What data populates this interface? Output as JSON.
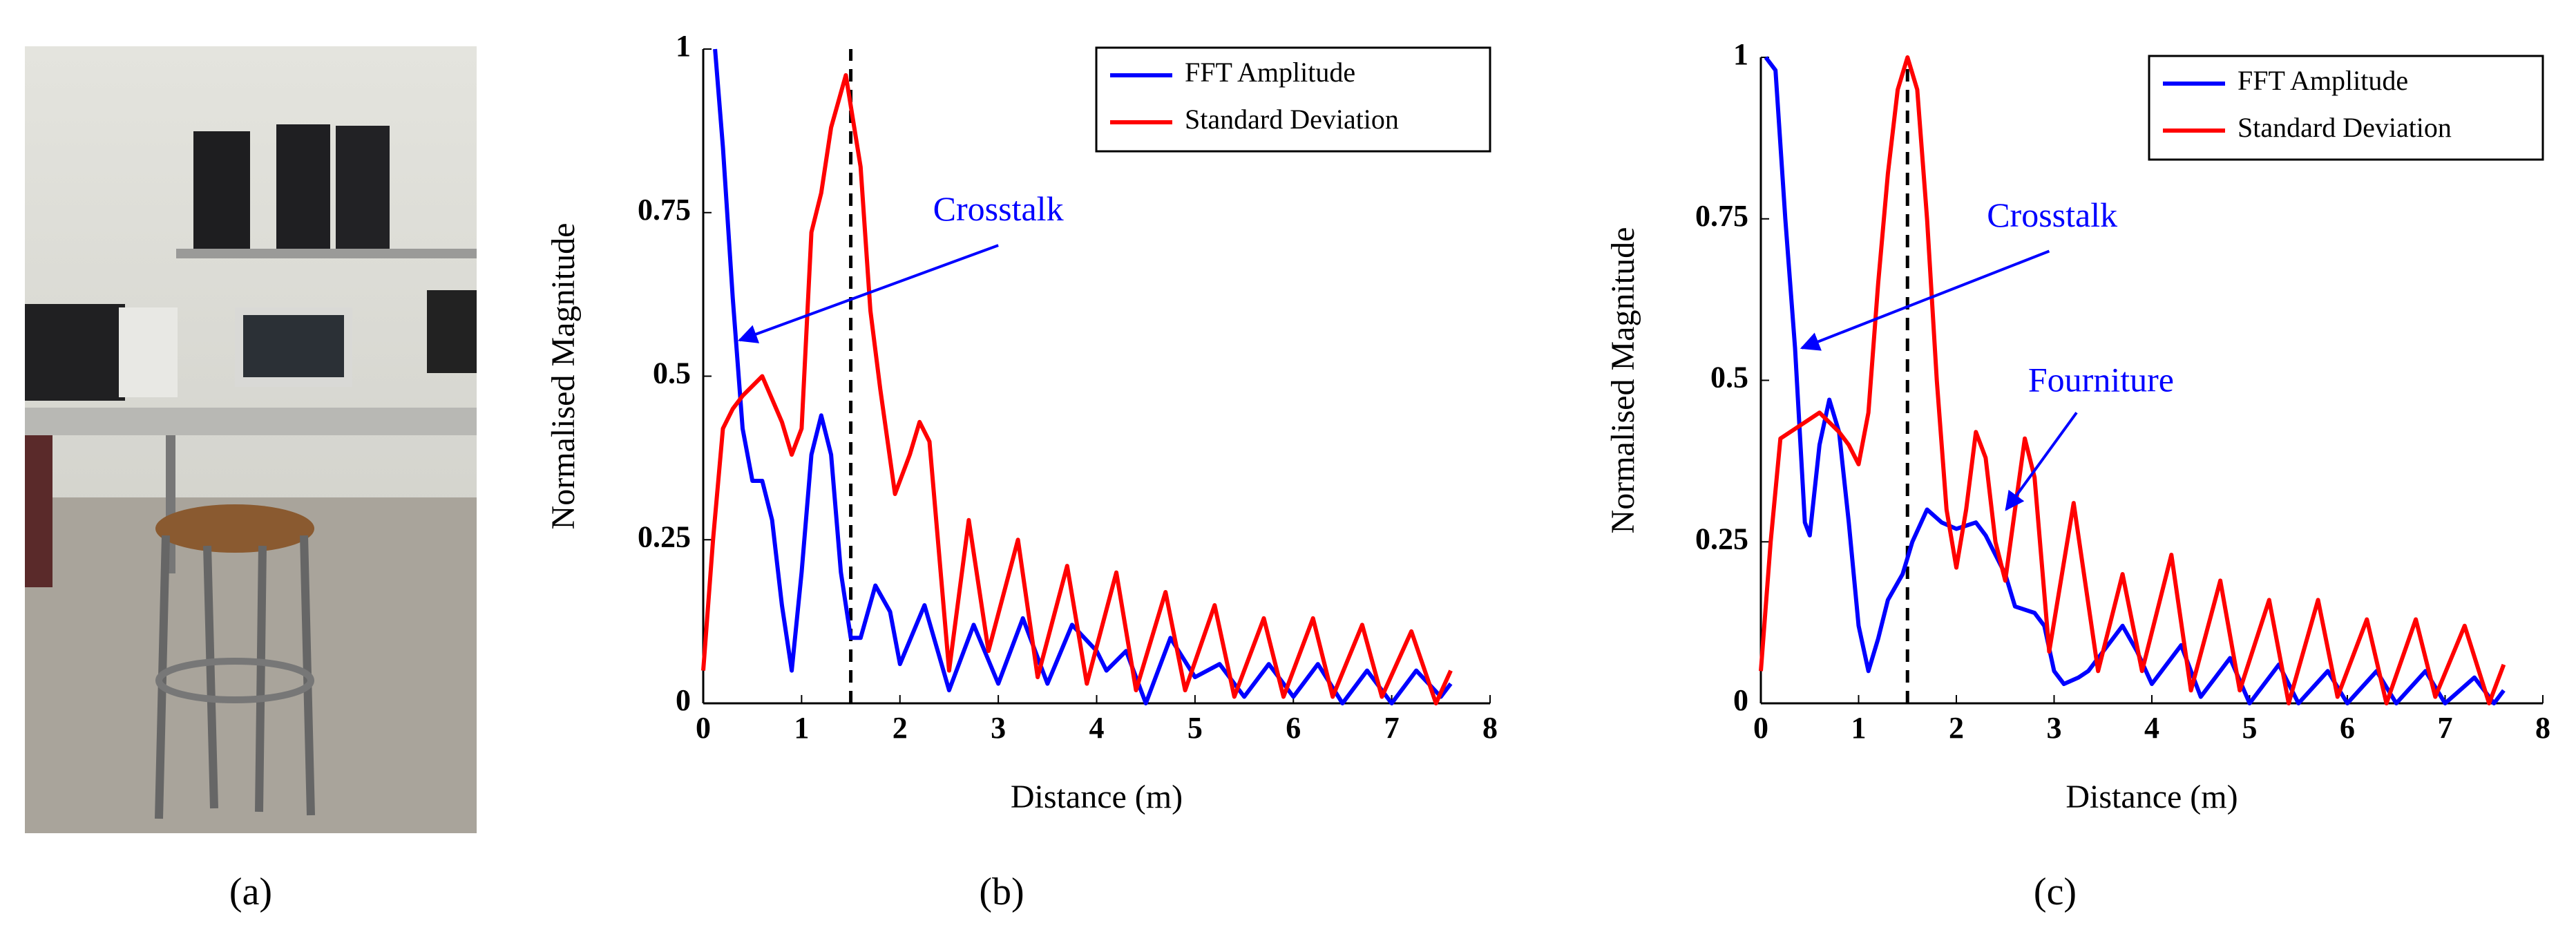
{
  "panels": [
    "(a)",
    "(b)",
    "(c)"
  ],
  "chart_data": [
    {
      "type": "line",
      "xlabel": "Distance (m)",
      "ylabel": "Normalised Magnitude",
      "xlim": [
        0,
        8
      ],
      "ylim": [
        0,
        1
      ],
      "xticks": [
        0,
        1,
        2,
        3,
        4,
        5,
        6,
        7,
        8
      ],
      "yticks": [
        0,
        0.25,
        0.5,
        0.75,
        1
      ],
      "vline": 1.5,
      "legend": "upper right",
      "annotations": [
        {
          "text": "Crosstalk",
          "color": "#0000ff"
        }
      ],
      "series": [
        {
          "name": "FFT Amplitude",
          "color": "#0000ff",
          "x": [
            0.12,
            0.2,
            0.3,
            0.4,
            0.5,
            0.6,
            0.7,
            0.8,
            0.9,
            1.0,
            1.1,
            1.2,
            1.3,
            1.4,
            1.5,
            1.6,
            1.75,
            1.9,
            2.0,
            2.25,
            2.5,
            2.75,
            3.0,
            3.25,
            3.5,
            3.75,
            4.0,
            4.1,
            4.3,
            4.5,
            4.75,
            5.0,
            5.25,
            5.5,
            5.75,
            6.0,
            6.25,
            6.5,
            6.75,
            7.0,
            7.25,
            7.5,
            7.6
          ],
          "values": [
            1,
            0.85,
            0.62,
            0.42,
            0.34,
            0.34,
            0.28,
            0.15,
            0.05,
            0.2,
            0.38,
            0.44,
            0.38,
            0.2,
            0.1,
            0.1,
            0.18,
            0.14,
            0.06,
            0.15,
            0.02,
            0.12,
            0.03,
            0.13,
            0.03,
            0.12,
            0.08,
            0.05,
            0.08,
            0,
            0.1,
            0.04,
            0.06,
            0.01,
            0.06,
            0.01,
            0.06,
            0,
            0.05,
            0,
            0.05,
            0.01,
            0.03
          ]
        },
        {
          "name": "Standard Deviation",
          "color": "#ff0000",
          "x": [
            0,
            0.1,
            0.2,
            0.3,
            0.4,
            0.6,
            0.8,
            0.9,
            1.0,
            1.1,
            1.2,
            1.3,
            1.45,
            1.6,
            1.7,
            1.8,
            1.95,
            2.1,
            2.2,
            2.3,
            2.5,
            2.7,
            2.9,
            3.2,
            3.4,
            3.7,
            3.9,
            4.2,
            4.4,
            4.7,
            4.9,
            5.2,
            5.4,
            5.7,
            5.9,
            6.2,
            6.4,
            6.7,
            6.9,
            7.2,
            7.45,
            7.6
          ],
          "values": [
            0.05,
            0.25,
            0.42,
            0.45,
            0.47,
            0.5,
            0.43,
            0.38,
            0.42,
            0.72,
            0.78,
            0.88,
            0.96,
            0.82,
            0.6,
            0.48,
            0.32,
            0.38,
            0.43,
            0.4,
            0.05,
            0.28,
            0.08,
            0.25,
            0.04,
            0.21,
            0.03,
            0.2,
            0.02,
            0.17,
            0.02,
            0.15,
            0.01,
            0.13,
            0.01,
            0.13,
            0.01,
            0.12,
            0.01,
            0.11,
            0,
            0.05
          ]
        }
      ]
    },
    {
      "type": "line",
      "xlabel": "Distance (m)",
      "ylabel": "Normalised Magnitude",
      "xlim": [
        0,
        8
      ],
      "ylim": [
        0,
        1
      ],
      "xticks": [
        0,
        1,
        2,
        3,
        4,
        5,
        6,
        7,
        8
      ],
      "yticks": [
        0,
        0.25,
        0.5,
        0.75,
        1
      ],
      "vline": 1.5,
      "legend": "upper right",
      "annotations": [
        {
          "text": "Crosstalk",
          "color": "#0000ff"
        },
        {
          "text": "Fourniture",
          "color": "#0000ff"
        }
      ],
      "series": [
        {
          "name": "FFT Amplitude",
          "color": "#0000ff",
          "x": [
            0.05,
            0.15,
            0.25,
            0.35,
            0.45,
            0.5,
            0.6,
            0.7,
            0.8,
            0.9,
            1.0,
            1.1,
            1.2,
            1.3,
            1.45,
            1.55,
            1.7,
            1.85,
            2.0,
            2.2,
            2.3,
            2.5,
            2.6,
            2.8,
            2.9,
            3.0,
            3.1,
            3.25,
            3.35,
            3.5,
            3.7,
            3.85,
            4.0,
            4.3,
            4.5,
            4.8,
            5.0,
            5.3,
            5.5,
            5.8,
            6.0,
            6.3,
            6.5,
            6.8,
            7.0,
            7.3,
            7.5,
            7.6
          ],
          "values": [
            1,
            0.98,
            0.75,
            0.55,
            0.28,
            0.26,
            0.4,
            0.47,
            0.42,
            0.28,
            0.12,
            0.05,
            0.1,
            0.16,
            0.2,
            0.25,
            0.3,
            0.28,
            0.27,
            0.28,
            0.26,
            0.2,
            0.15,
            0.14,
            0.12,
            0.05,
            0.03,
            0.04,
            0.05,
            0.08,
            0.12,
            0.08,
            0.03,
            0.09,
            0.01,
            0.07,
            0,
            0.06,
            0,
            0.05,
            0,
            0.05,
            0,
            0.05,
            0,
            0.04,
            0,
            0.02
          ]
        },
        {
          "name": "Standard Deviation",
          "color": "#ff0000",
          "x": [
            0,
            0.1,
            0.2,
            0.4,
            0.6,
            0.8,
            0.9,
            1.0,
            1.1,
            1.2,
            1.3,
            1.4,
            1.5,
            1.6,
            1.7,
            1.8,
            1.9,
            2.0,
            2.1,
            2.2,
            2.3,
            2.4,
            2.5,
            2.6,
            2.7,
            2.8,
            2.95,
            3.2,
            3.45,
            3.7,
            3.9,
            4.2,
            4.4,
            4.7,
            4.9,
            5.2,
            5.4,
            5.7,
            5.9,
            6.2,
            6.4,
            6.7,
            6.9,
            7.2,
            7.45,
            7.6
          ],
          "values": [
            0.05,
            0.25,
            0.41,
            0.43,
            0.45,
            0.42,
            0.4,
            0.37,
            0.45,
            0.65,
            0.82,
            0.95,
            1,
            0.95,
            0.75,
            0.5,
            0.3,
            0.21,
            0.3,
            0.42,
            0.38,
            0.25,
            0.19,
            0.3,
            0.41,
            0.35,
            0.08,
            0.31,
            0.05,
            0.2,
            0.05,
            0.23,
            0.02,
            0.19,
            0.02,
            0.16,
            0,
            0.16,
            0.01,
            0.13,
            0,
            0.13,
            0.01,
            0.12,
            0,
            0.06
          ]
        }
      ]
    }
  ]
}
